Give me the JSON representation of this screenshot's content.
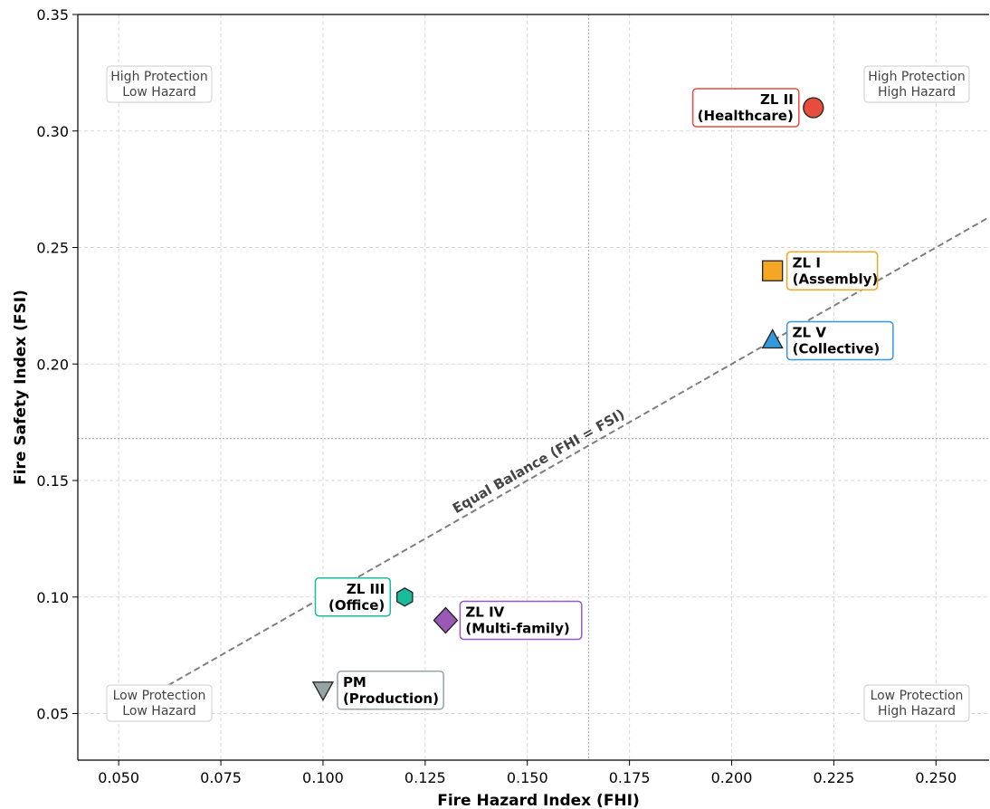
{
  "chart_data": {
    "type": "scatter",
    "xlabel": "Fire Hazard Index (FHI)",
    "ylabel": "Fire Safety Index (FSI)",
    "xlim": [
      0.04,
      0.263
    ],
    "ylim": [
      0.03,
      0.35
    ],
    "x_ticks": [
      "0.050",
      "0.075",
      "0.100",
      "0.125",
      "0.150",
      "0.175",
      "0.200",
      "0.225",
      "0.250"
    ],
    "y_ticks": [
      "0.05",
      "0.10",
      "0.15",
      "0.20",
      "0.25",
      "0.30",
      "0.35"
    ],
    "grid": true,
    "points": [
      {
        "line1": "ZL I",
        "line2": "(Assembly)",
        "x": 0.21,
        "y": 0.24,
        "marker": "square",
        "color": "#f5a623",
        "side": "right"
      },
      {
        "line1": "ZL II",
        "line2": "(Healthcare)",
        "x": 0.22,
        "y": 0.31,
        "marker": "circle",
        "color": "#e74c3c",
        "side": "left"
      },
      {
        "line1": "ZL III",
        "line2": "(Office)",
        "x": 0.12,
        "y": 0.1,
        "marker": "hexagon",
        "color": "#1abc9c",
        "side": "left"
      },
      {
        "line1": "ZL IV",
        "line2": "(Multi-family)",
        "x": 0.13,
        "y": 0.09,
        "marker": "diamond",
        "color": "#9b59b6",
        "side": "right"
      },
      {
        "line1": "ZL V",
        "line2": "(Collective)",
        "x": 0.21,
        "y": 0.21,
        "marker": "triangle-up",
        "color": "#3498db",
        "side": "right"
      },
      {
        "line1": "PM",
        "line2": "(Production)",
        "x": 0.1,
        "y": 0.06,
        "marker": "triangle-down",
        "color": "#95a5a6",
        "side": "right"
      }
    ],
    "reference_line": {
      "label": "Equal Balance (FHI = FSI)",
      "slope": 1,
      "x_start": 0.06
    },
    "divider_x": 0.165,
    "divider_y": 0.168,
    "quadrants": [
      {
        "line1": "High Protection",
        "line2": "Low Hazard",
        "corner": "top-left"
      },
      {
        "line1": "High Protection",
        "line2": "High Hazard",
        "corner": "top-right"
      },
      {
        "line1": "Low Protection",
        "line2": "Low Hazard",
        "corner": "bottom-left"
      },
      {
        "line1": "Low Protection",
        "line2": "High Hazard",
        "corner": "bottom-right"
      }
    ]
  }
}
